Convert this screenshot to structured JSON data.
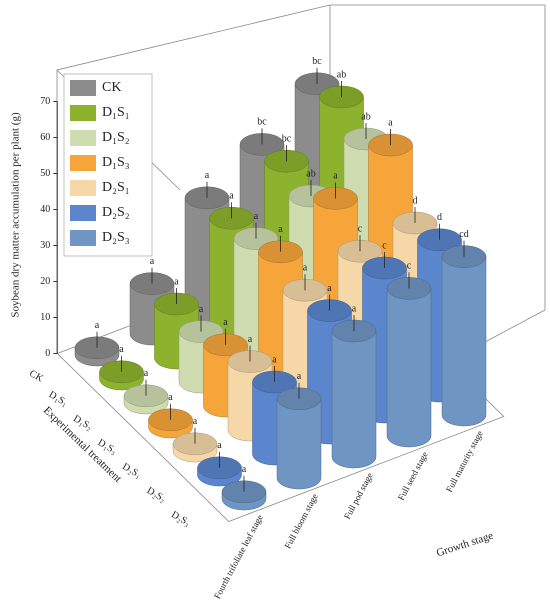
{
  "chart_data": {
    "type": "bar3d",
    "y_axis_label": "Soybean dry matter accumulation per plant (g)",
    "treatment_axis_label": "Experimental treatment",
    "x_axis_label": "Growth stage",
    "categories": [
      "Fourth trifoliate leaf stage",
      "Full bloom stage",
      "Full pod stage",
      "Full seed stage",
      "Full maturity stage"
    ],
    "ylim": [
      0,
      70
    ],
    "yticks": [
      0,
      10,
      20,
      30,
      40,
      50,
      60,
      70
    ],
    "series": [
      {
        "name": "CK",
        "color": "#8c8c8c",
        "values": [
          2,
          14,
          32,
          41,
          52
        ],
        "annotations": [
          "a",
          "a",
          "a",
          "bc",
          "bc"
        ]
      },
      {
        "name": "D₁S₁",
        "color": "#8db32e",
        "values": [
          2,
          15,
          33,
          43,
          55
        ],
        "annotations": [
          "a",
          "a",
          "a",
          "bc",
          "ab"
        ]
      },
      {
        "name": "D₁S₂",
        "color": "#cfdcb0",
        "values": [
          2,
          14,
          34,
          40,
          50
        ],
        "annotations": [
          "a",
          "a",
          "a",
          "ab",
          "ab"
        ]
      },
      {
        "name": "D₁S₃",
        "color": "#f5a53a",
        "values": [
          2,
          17,
          37,
          46,
          55
        ],
        "annotations": [
          "a",
          "a",
          "a",
          "a",
          "a"
        ]
      },
      {
        "name": "D₂S₁",
        "color": "#f6d8a8",
        "values": [
          2,
          19,
          33,
          38,
          40
        ],
        "annotations": [
          "a",
          "a",
          "a",
          "c",
          "d"
        ]
      },
      {
        "name": "D₂S₂",
        "color": "#5b85cc",
        "values": [
          2,
          20,
          34,
          40,
          42
        ],
        "annotations": [
          "a",
          "a",
          "a",
          "c",
          "d"
        ]
      },
      {
        "name": "D₂S₃",
        "color": "#6f95c2",
        "values": [
          2,
          22,
          35,
          41,
          44
        ],
        "annotations": [
          "a",
          "a",
          "a",
          "c",
          "cd"
        ]
      }
    ]
  }
}
